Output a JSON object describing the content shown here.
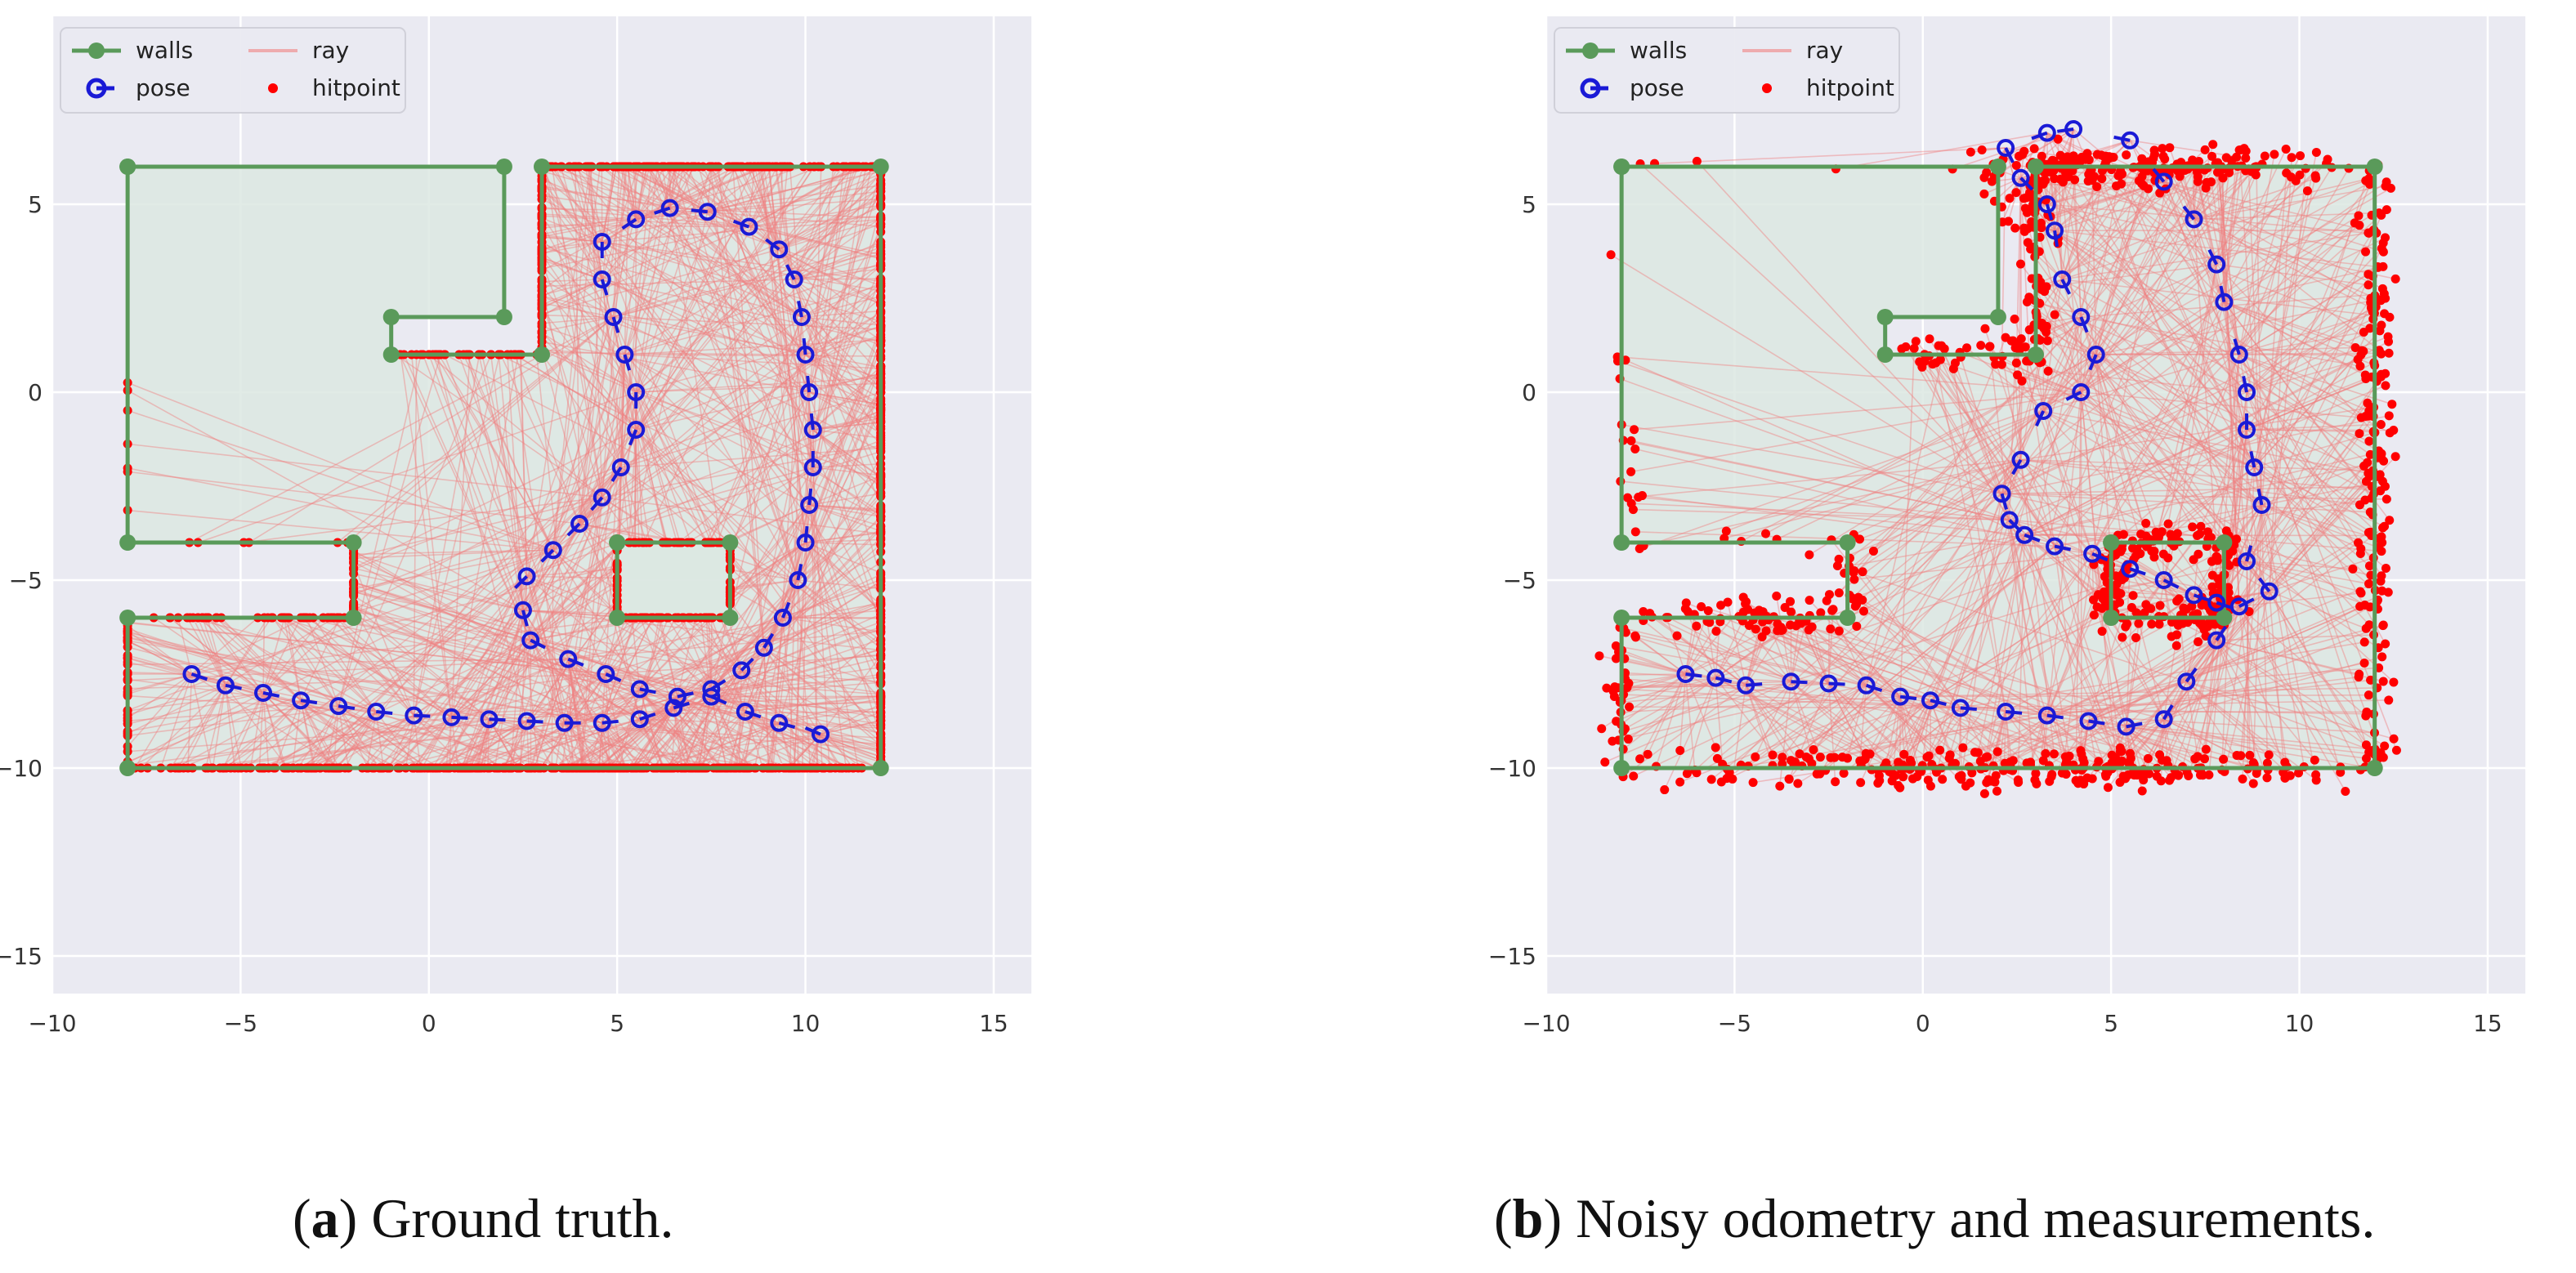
{
  "figure": {
    "caption_a_label": "a",
    "caption_a_text": "Ground truth.",
    "caption_b_label": "b",
    "caption_b_text": "Noisy odometry and measurements."
  },
  "colors": {
    "plot_bg": "#eaeaf2",
    "grid": "#ffffff",
    "walls": "#5a9a5a",
    "room_fill": "#dce8e2",
    "pose": "#1a1ad6",
    "ray": "#f08080",
    "hitpoint": "#ff0000",
    "tick": "#333333"
  },
  "chart_data": [
    {
      "type": "scatter",
      "panel": "a",
      "title": "",
      "xlabel": "",
      "ylabel": "",
      "xlim": [
        -10,
        16
      ],
      "ylim": [
        -16,
        10
      ],
      "xticks": [
        -10,
        -5,
        0,
        5,
        10,
        15
      ],
      "xtick_labels": [
        "−10",
        "−5",
        "0",
        "5",
        "10",
        "15"
      ],
      "yticks": [
        5,
        0,
        -5,
        -10,
        -15
      ],
      "ytick_labels": [
        "5",
        "0",
        "−5",
        "−10",
        "−15"
      ],
      "legend": {
        "position": "top-left",
        "entries": [
          "walls",
          "ray",
          "pose",
          "hitpoint"
        ]
      },
      "walls": [
        [
          [
            -8,
            6
          ],
          [
            2,
            6
          ],
          [
            2,
            2
          ],
          [
            -1,
            2
          ],
          [
            -1,
            1
          ],
          [
            3,
            1
          ],
          [
            3,
            6
          ],
          [
            12,
            6
          ],
          [
            12,
            -10
          ],
          [
            -8,
            -10
          ],
          [
            -8,
            -6
          ],
          [
            -2,
            -6
          ],
          [
            -2,
            -4
          ],
          [
            -8,
            -4
          ],
          [
            -8,
            6
          ]
        ],
        [
          [
            5,
            -4
          ],
          [
            8,
            -4
          ],
          [
            8,
            -6
          ],
          [
            5,
            -6
          ],
          [
            5,
            -4
          ]
        ]
      ],
      "pose": [
        [
          -6.3,
          -7.5
        ],
        [
          -5.4,
          -7.8
        ],
        [
          -4.4,
          -8.0
        ],
        [
          -3.4,
          -8.2
        ],
        [
          -2.4,
          -8.35
        ],
        [
          -1.4,
          -8.5
        ],
        [
          -0.4,
          -8.6
        ],
        [
          0.6,
          -8.65
        ],
        [
          1.6,
          -8.7
        ],
        [
          2.6,
          -8.75
        ],
        [
          3.6,
          -8.8
        ],
        [
          4.6,
          -8.8
        ],
        [
          5.6,
          -8.7
        ],
        [
          6.5,
          -8.4
        ],
        [
          7.5,
          -8.1
        ],
        [
          8.4,
          -8.5
        ],
        [
          9.3,
          -8.8
        ],
        [
          10.4,
          -9.1
        ],
        [
          2.5,
          -5.8
        ],
        [
          2.7,
          -6.6
        ],
        [
          3.7,
          -7.1
        ],
        [
          4.7,
          -7.5
        ],
        [
          5.6,
          -7.9
        ],
        [
          6.6,
          -8.1
        ],
        [
          7.5,
          -7.9
        ],
        [
          8.3,
          -7.4
        ],
        [
          8.9,
          -6.8
        ],
        [
          9.4,
          -6.0
        ],
        [
          9.8,
          -5.0
        ],
        [
          10.0,
          -4.0
        ],
        [
          10.1,
          -3.0
        ],
        [
          10.2,
          -2.0
        ],
        [
          10.2,
          -1.0
        ],
        [
          10.1,
          0.0
        ],
        [
          10.0,
          1.0
        ],
        [
          9.9,
          2.0
        ],
        [
          9.7,
          3.0
        ],
        [
          9.3,
          3.8
        ],
        [
          8.5,
          4.4
        ],
        [
          7.4,
          4.8
        ],
        [
          6.4,
          4.9
        ],
        [
          5.5,
          4.6
        ],
        [
          4.6,
          4.0
        ],
        [
          4.6,
          3.0
        ],
        [
          4.9,
          2.0
        ],
        [
          5.2,
          1.0
        ],
        [
          5.5,
          0.0
        ],
        [
          5.5,
          -1.0
        ],
        [
          5.1,
          -2.0
        ],
        [
          4.6,
          -2.8
        ],
        [
          4.0,
          -3.5
        ],
        [
          3.3,
          -4.2
        ],
        [
          2.6,
          -4.9
        ]
      ]
    },
    {
      "type": "scatter",
      "panel": "b",
      "title": "",
      "xlabel": "",
      "ylabel": "",
      "xlim": [
        -10,
        16
      ],
      "ylim": [
        -16,
        10
      ],
      "xticks": [
        -10,
        -5,
        0,
        5,
        10,
        15
      ],
      "xtick_labels": [
        "−10",
        "−5",
        "0",
        "5",
        "10",
        "15"
      ],
      "yticks": [
        5,
        0,
        -5,
        -10,
        -15
      ],
      "ytick_labels": [
        "5",
        "0",
        "−5",
        "−10",
        "−15"
      ],
      "legend": {
        "position": "top-left",
        "entries": [
          "walls",
          "ray",
          "pose",
          "hitpoint"
        ]
      },
      "walls": [
        [
          [
            -8,
            6
          ],
          [
            2,
            6
          ],
          [
            2,
            2
          ],
          [
            -1,
            2
          ],
          [
            -1,
            1
          ],
          [
            3,
            1
          ],
          [
            3,
            6
          ],
          [
            12,
            6
          ],
          [
            12,
            -10
          ],
          [
            -8,
            -10
          ],
          [
            -8,
            -6
          ],
          [
            -2,
            -6
          ],
          [
            -2,
            -4
          ],
          [
            -8,
            -4
          ],
          [
            -8,
            6
          ]
        ],
        [
          [
            5,
            -4
          ],
          [
            8,
            -4
          ],
          [
            8,
            -6
          ],
          [
            5,
            -6
          ],
          [
            5,
            -4
          ]
        ]
      ],
      "pose": [
        [
          -6.3,
          -7.5
        ],
        [
          -5.5,
          -7.6
        ],
        [
          -4.7,
          -7.8
        ],
        [
          -3.5,
          -7.7
        ],
        [
          -2.5,
          -7.75
        ],
        [
          -1.5,
          -7.8
        ],
        [
          -0.6,
          -8.1
        ],
        [
          0.2,
          -8.2
        ],
        [
          1.0,
          -8.4
        ],
        [
          2.2,
          -8.5
        ],
        [
          3.3,
          -8.6
        ],
        [
          4.4,
          -8.75
        ],
        [
          5.4,
          -8.9
        ],
        [
          6.4,
          -8.7
        ],
        [
          7.0,
          -7.7
        ],
        [
          7.8,
          -6.6
        ],
        [
          8.4,
          -5.7
        ],
        [
          9.2,
          -5.3
        ],
        [
          8.6,
          -4.5
        ],
        [
          9.0,
          -3.0
        ],
        [
          8.8,
          -2.0
        ],
        [
          8.6,
          -1.0
        ],
        [
          8.6,
          0.0
        ],
        [
          8.4,
          1.0
        ],
        [
          8.0,
          2.4
        ],
        [
          7.8,
          3.4
        ],
        [
          7.2,
          4.6
        ],
        [
          6.4,
          5.6
        ],
        [
          5.5,
          6.7
        ],
        [
          4.0,
          7.0
        ],
        [
          3.3,
          6.9
        ],
        [
          2.2,
          6.5
        ],
        [
          2.6,
          5.7
        ],
        [
          3.3,
          5.0
        ],
        [
          3.5,
          4.3
        ],
        [
          3.7,
          3.0
        ],
        [
          4.2,
          2.0
        ],
        [
          4.6,
          1.0
        ],
        [
          4.2,
          0.0
        ],
        [
          3.2,
          -0.5
        ],
        [
          2.6,
          -1.8
        ],
        [
          2.1,
          -2.7
        ],
        [
          2.3,
          -3.4
        ],
        [
          2.7,
          -3.8
        ],
        [
          3.5,
          -4.1
        ],
        [
          4.5,
          -4.3
        ],
        [
          5.5,
          -4.7
        ],
        [
          6.4,
          -5.0
        ],
        [
          7.2,
          -5.4
        ],
        [
          7.8,
          -5.6
        ]
      ]
    }
  ]
}
